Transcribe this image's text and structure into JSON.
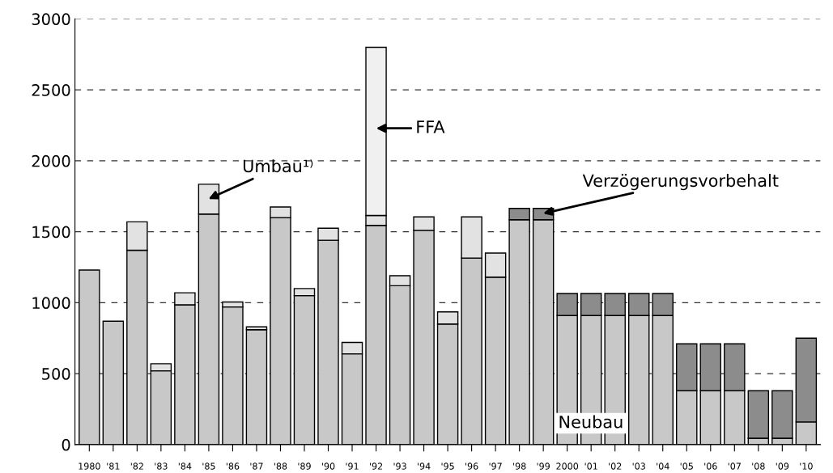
{
  "chart_data": {
    "type": "bar",
    "stacked": true,
    "categories": [
      "1980",
      "'81",
      "'82",
      "'83",
      "'84",
      "'85",
      "'86",
      "'87",
      "'88",
      "'89",
      "'90",
      "'91",
      "'92",
      "'93",
      "'94",
      "'95",
      "'96",
      "'97",
      "'98",
      "'99",
      "2000",
      "'01",
      "'02",
      "'03",
      "'04",
      "'05",
      "'06",
      "'07",
      "'08",
      "'09",
      "'10"
    ],
    "series": [
      {
        "color": "#c8c8c8",
        "values": [
          1230,
          870,
          1370,
          520,
          985,
          1625,
          970,
          810,
          1600,
          1050,
          1440,
          640,
          1545,
          1120,
          1510,
          850,
          1315,
          1180,
          1585,
          1585,
          910,
          910,
          910,
          910,
          910,
          380,
          380,
          380,
          45,
          45,
          160
        ]
      },
      {
        "color": "#e2e2e2",
        "values": [
          null,
          null,
          200,
          50,
          85,
          210,
          35,
          20,
          75,
          50,
          85,
          80,
          70,
          70,
          95,
          85,
          290,
          170,
          null,
          null,
          null,
          null,
          null,
          null,
          null,
          null,
          null,
          null,
          null,
          null,
          null
        ]
      },
      {
        "color": "#f0f0f0",
        "values": [
          null,
          null,
          null,
          null,
          null,
          null,
          null,
          null,
          null,
          null,
          null,
          null,
          1185,
          null,
          null,
          null,
          null,
          null,
          null,
          null,
          null,
          null,
          null,
          null,
          null,
          null,
          null,
          null,
          null,
          null,
          null
        ]
      },
      {
        "color": "#8c8c8c",
        "values": [
          null,
          null,
          null,
          null,
          null,
          null,
          null,
          null,
          null,
          null,
          null,
          null,
          null,
          null,
          null,
          null,
          null,
          null,
          80,
          80,
          155,
          155,
          155,
          155,
          155,
          330,
          330,
          330,
          335,
          335,
          590
        ]
      }
    ],
    "ylim": [
      0,
      3000
    ],
    "yticks": [
      0,
      500,
      1000,
      1500,
      2000,
      2500,
      3000
    ],
    "grid": "y",
    "line_style": "dashed",
    "legend": false,
    "annotations": [
      "Umbau¹⁾",
      "FFA",
      "Verzögerungsvorbehalt",
      "Neubau"
    ]
  }
}
